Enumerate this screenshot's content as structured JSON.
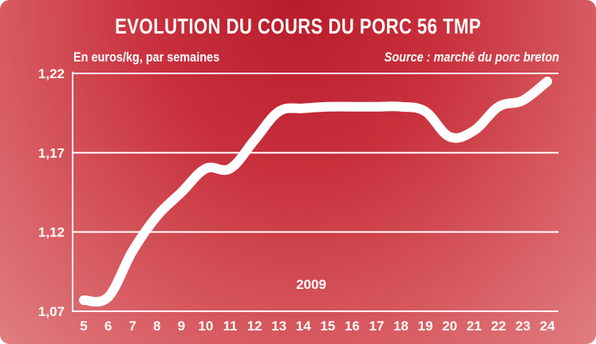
{
  "chart_data": {
    "type": "line",
    "title": "EVOLUTION DU COURS DU PORC 56 TMP",
    "subtitle": "En euros/kg, par semaines",
    "source": "Source : marché du porc breton",
    "annotation": "2009",
    "x": [
      5,
      6,
      7,
      8,
      9,
      10,
      11,
      12,
      13,
      14,
      15,
      16,
      17,
      18,
      19,
      20,
      21,
      22,
      23,
      24
    ],
    "x_tick_labels": [
      "5",
      "6",
      "7",
      "8",
      "9",
      "10",
      "11",
      "12",
      "13",
      "14",
      "15",
      "16",
      "17",
      "18",
      "19",
      "20",
      "21",
      "22",
      "23",
      "24"
    ],
    "series": [
      {
        "values": [
          1.077,
          1.079,
          1.108,
          1.13,
          1.145,
          1.16,
          1.16,
          1.178,
          1.196,
          1.198,
          1.199,
          1.199,
          1.199,
          1.199,
          1.196,
          1.18,
          1.184,
          1.199,
          1.203,
          1.215
        ]
      }
    ],
    "ylim": [
      1.07,
      1.22
    ],
    "y_ticks": [
      1.07,
      1.12,
      1.17,
      1.22
    ],
    "y_tick_labels": [
      "1,07",
      "1,12",
      "1,17",
      "1,22"
    ],
    "grid": true,
    "line_color": "#ffffff",
    "background_color": "#c8303c"
  }
}
